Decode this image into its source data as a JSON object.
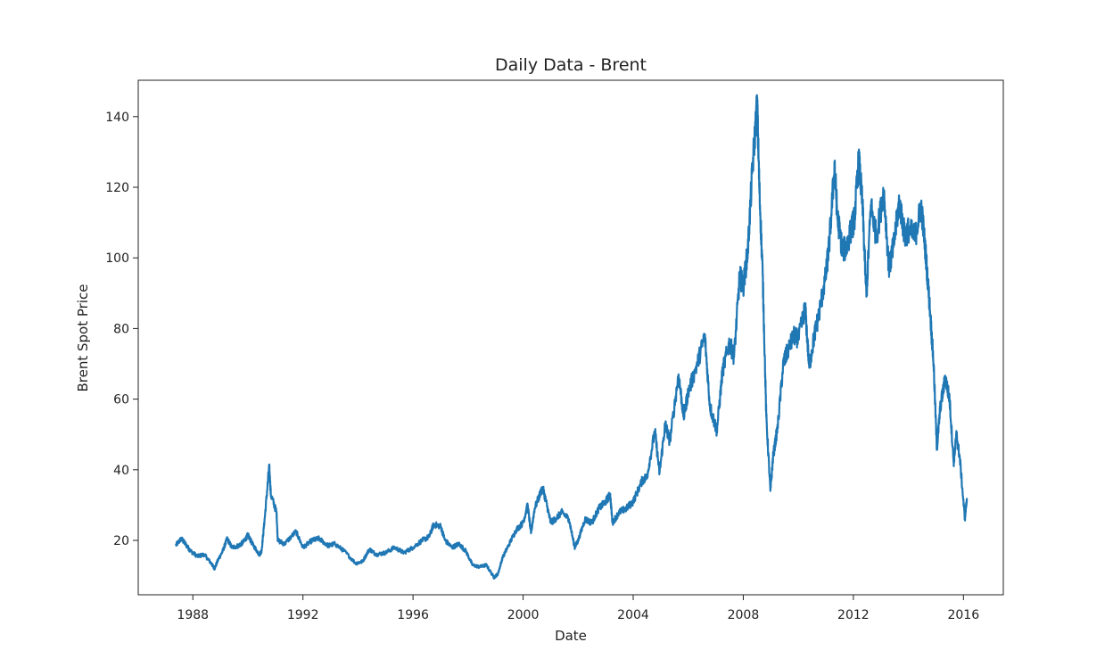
{
  "chart_data": {
    "type": "line",
    "title": "Daily Data - Brent",
    "xlabel": "Date",
    "ylabel": "Brent Spot Price",
    "xlim": [
      "1986-01-06",
      "2017-06-13"
    ],
    "ylim": [
      4.6,
      150.3
    ],
    "xticks": [
      {
        "date": "1988-01-01",
        "label": "1988"
      },
      {
        "date": "1992-01-01",
        "label": "1992"
      },
      {
        "date": "1996-01-01",
        "label": "1996"
      },
      {
        "date": "2000-01-01",
        "label": "2000"
      },
      {
        "date": "2004-01-01",
        "label": "2004"
      },
      {
        "date": "2008-01-01",
        "label": "2008"
      },
      {
        "date": "2012-01-01",
        "label": "2012"
      },
      {
        "date": "2016-01-01",
        "label": "2016"
      }
    ],
    "yticks": [
      {
        "value": 20,
        "label": "20"
      },
      {
        "value": 40,
        "label": "40"
      },
      {
        "value": 60,
        "label": "60"
      },
      {
        "value": 80,
        "label": "80"
      },
      {
        "value": 100,
        "label": "100"
      },
      {
        "value": 120,
        "label": "120"
      },
      {
        "value": 140,
        "label": "140"
      }
    ],
    "grid": false,
    "legend": null,
    "series": [
      {
        "color": "#1f77b4",
        "points": [
          [
            "1987-05-20",
            18.6
          ],
          [
            "1987-08-01",
            20.5
          ],
          [
            "1987-10-01",
            18.8
          ],
          [
            "1987-12-01",
            17.0
          ],
          [
            "1988-03-01",
            15.5
          ],
          [
            "1988-06-01",
            16.0
          ],
          [
            "1988-09-01",
            13.5
          ],
          [
            "1988-10-15",
            12.0
          ],
          [
            "1988-12-01",
            14.5
          ],
          [
            "1989-02-01",
            17.0
          ],
          [
            "1989-04-01",
            20.5
          ],
          [
            "1989-06-01",
            18.0
          ],
          [
            "1989-09-01",
            18.5
          ],
          [
            "1989-11-01",
            19.5
          ],
          [
            "1990-01-01",
            21.5
          ],
          [
            "1990-03-01",
            19.0
          ],
          [
            "1990-06-01",
            16.0
          ],
          [
            "1990-07-01",
            17.0
          ],
          [
            "1990-08-15",
            27.0
          ],
          [
            "1990-10-10",
            41.0
          ],
          [
            "1990-11-01",
            33.0
          ],
          [
            "1991-01-15",
            28.0
          ],
          [
            "1991-02-01",
            20.0
          ],
          [
            "1991-05-01",
            19.0
          ],
          [
            "1991-10-01",
            22.5
          ],
          [
            "1992-01-01",
            18.0
          ],
          [
            "1992-05-01",
            20.0
          ],
          [
            "1992-08-01",
            20.5
          ],
          [
            "1992-12-01",
            18.5
          ],
          [
            "1993-03-01",
            19.0
          ],
          [
            "1993-07-01",
            17.0
          ],
          [
            "1993-12-01",
            13.5
          ],
          [
            "1994-03-01",
            14.0
          ],
          [
            "1994-06-01",
            17.5
          ],
          [
            "1994-09-01",
            16.0
          ],
          [
            "1995-01-01",
            16.5
          ],
          [
            "1995-05-01",
            18.0
          ],
          [
            "1995-09-01",
            16.5
          ],
          [
            "1996-01-01",
            18.0
          ],
          [
            "1996-05-01",
            20.0
          ],
          [
            "1996-08-01",
            21.0
          ],
          [
            "1996-10-01",
            24.5
          ],
          [
            "1997-01-01",
            24.0
          ],
          [
            "1997-03-01",
            20.0
          ],
          [
            "1997-06-01",
            18.0
          ],
          [
            "1997-09-01",
            19.0
          ],
          [
            "1997-12-01",
            17.0
          ],
          [
            "1998-03-01",
            13.0
          ],
          [
            "1998-06-01",
            12.5
          ],
          [
            "1998-09-01",
            13.0
          ],
          [
            "1998-12-10",
            9.5
          ],
          [
            "1999-02-01",
            10.5
          ],
          [
            "1999-04-01",
            15.0
          ],
          [
            "1999-07-01",
            19.0
          ],
          [
            "1999-10-01",
            23.0
          ],
          [
            "2000-01-01",
            25.0
          ],
          [
            "2000-03-01",
            30.0
          ],
          [
            "2000-04-15",
            22.0
          ],
          [
            "2000-06-01",
            29.0
          ],
          [
            "2000-09-15",
            35.0
          ],
          [
            "2000-11-01",
            31.0
          ],
          [
            "2001-01-01",
            25.0
          ],
          [
            "2001-03-01",
            26.0
          ],
          [
            "2001-06-01",
            28.0
          ],
          [
            "2001-09-01",
            26.0
          ],
          [
            "2001-11-15",
            18.0
          ],
          [
            "2002-01-01",
            20.0
          ],
          [
            "2002-04-01",
            26.0
          ],
          [
            "2002-07-01",
            25.0
          ],
          [
            "2002-10-01",
            29.0
          ],
          [
            "2003-01-01",
            31.0
          ],
          [
            "2003-03-01",
            33.0
          ],
          [
            "2003-04-01",
            25.0
          ],
          [
            "2003-07-01",
            28.0
          ],
          [
            "2003-10-01",
            29.0
          ],
          [
            "2004-01-01",
            31.0
          ],
          [
            "2004-05-01",
            37.0
          ],
          [
            "2004-07-01",
            38.0
          ],
          [
            "2004-10-15",
            51.0
          ],
          [
            "2004-12-15",
            39.0
          ],
          [
            "2005-03-01",
            53.0
          ],
          [
            "2005-05-01",
            48.0
          ],
          [
            "2005-08-25",
            67.0
          ],
          [
            "2005-11-01",
            55.0
          ],
          [
            "2006-01-01",
            62.0
          ],
          [
            "2006-05-01",
            70.0
          ],
          [
            "2006-08-08",
            78.0
          ],
          [
            "2006-10-15",
            58.0
          ],
          [
            "2007-01-15",
            51.0
          ],
          [
            "2007-04-01",
            68.0
          ],
          [
            "2007-07-01",
            76.0
          ],
          [
            "2007-09-01",
            72.0
          ],
          [
            "2007-11-15",
            95.0
          ],
          [
            "2008-01-01",
            92.0
          ],
          [
            "2008-03-01",
            102.0
          ],
          [
            "2008-05-01",
            125.0
          ],
          [
            "2008-07-03",
            143.9
          ],
          [
            "2008-08-01",
            120.0
          ],
          [
            "2008-09-15",
            95.0
          ],
          [
            "2008-11-01",
            55.0
          ],
          [
            "2008-12-26",
            34.0
          ],
          [
            "2009-02-01",
            44.0
          ],
          [
            "2009-04-01",
            52.0
          ],
          [
            "2009-06-15",
            70.0
          ],
          [
            "2009-08-01",
            73.0
          ],
          [
            "2009-11-01",
            78.0
          ],
          [
            "2010-01-01",
            77.0
          ],
          [
            "2010-04-01",
            86.0
          ],
          [
            "2010-05-25",
            69.0
          ],
          [
            "2010-08-01",
            78.0
          ],
          [
            "2010-10-01",
            84.0
          ],
          [
            "2010-12-31",
            95.0
          ],
          [
            "2011-02-15",
            104.0
          ],
          [
            "2011-04-28",
            126.5
          ],
          [
            "2011-06-01",
            112.0
          ],
          [
            "2011-08-10",
            102.0
          ],
          [
            "2011-10-01",
            103.0
          ],
          [
            "2011-12-01",
            108.0
          ],
          [
            "2012-01-15",
            111.0
          ],
          [
            "2012-03-13",
            128.0
          ],
          [
            "2012-05-01",
            115.0
          ],
          [
            "2012-06-22",
            89.0
          ],
          [
            "2012-08-20",
            115.0
          ],
          [
            "2012-11-01",
            106.0
          ],
          [
            "2013-02-08",
            119.0
          ],
          [
            "2013-04-17",
            97.0
          ],
          [
            "2013-06-15",
            103.0
          ],
          [
            "2013-09-01",
            116.0
          ],
          [
            "2013-11-15",
            106.0
          ],
          [
            "2014-01-01",
            108.0
          ],
          [
            "2014-04-01",
            106.0
          ],
          [
            "2014-06-19",
            115.0
          ],
          [
            "2014-08-15",
            102.0
          ],
          [
            "2014-10-15",
            85.0
          ],
          [
            "2014-12-01",
            70.0
          ],
          [
            "2015-01-13",
            46.0
          ],
          [
            "2015-03-01",
            58.0
          ],
          [
            "2015-05-06",
            66.0
          ],
          [
            "2015-07-01",
            60.0
          ],
          [
            "2015-08-24",
            42.0
          ],
          [
            "2015-10-01",
            50.0
          ],
          [
            "2015-11-15",
            43.0
          ],
          [
            "2016-01-20",
            26.0
          ],
          [
            "2016-02-15",
            32.0
          ]
        ]
      }
    ]
  }
}
